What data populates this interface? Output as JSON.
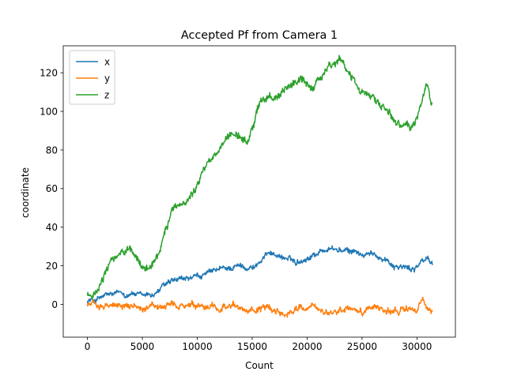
{
  "chart_data": {
    "type": "line",
    "title": "Accepted Pf from Camera 1",
    "xlabel": "Count",
    "ylabel": "coordinate",
    "xlim": [
      -2200,
      33500
    ],
    "ylim": [
      -17,
      134
    ],
    "xticks": [
      0,
      5000,
      10000,
      15000,
      20000,
      25000,
      30000
    ],
    "yticks": [
      0,
      20,
      40,
      60,
      80,
      100,
      120
    ],
    "legend": "top-left",
    "grid": false,
    "series": [
      {
        "name": "x",
        "color": "#1f77b4",
        "noise": 1.4,
        "points": [
          [
            0,
            2
          ],
          [
            700,
            2
          ],
          [
            1000,
            3
          ],
          [
            1500,
            4
          ],
          [
            2000,
            5
          ],
          [
            2500,
            5
          ],
          [
            3000,
            6
          ],
          [
            3500,
            5
          ],
          [
            4000,
            6
          ],
          [
            4500,
            5
          ],
          [
            5000,
            4
          ],
          [
            5500,
            5
          ],
          [
            6000,
            5
          ],
          [
            6500,
            7
          ],
          [
            7000,
            10
          ],
          [
            7500,
            11
          ],
          [
            8000,
            12
          ],
          [
            9000,
            13
          ],
          [
            10000,
            14
          ],
          [
            11000,
            16
          ],
          [
            12000,
            18
          ],
          [
            13000,
            19
          ],
          [
            14000,
            20
          ],
          [
            15000,
            19
          ],
          [
            16000,
            23
          ],
          [
            16500,
            28
          ],
          [
            17000,
            26
          ],
          [
            18000,
            24
          ],
          [
            19000,
            22
          ],
          [
            20000,
            24
          ],
          [
            21000,
            27
          ],
          [
            22000,
            29
          ],
          [
            23000,
            28
          ],
          [
            24000,
            27
          ],
          [
            24500,
            28
          ],
          [
            25000,
            25
          ],
          [
            26000,
            26
          ],
          [
            27000,
            24
          ],
          [
            28000,
            20
          ],
          [
            29000,
            19
          ],
          [
            29500,
            18
          ],
          [
            30000,
            20
          ],
          [
            30500,
            22
          ],
          [
            31000,
            24
          ],
          [
            31400,
            21
          ]
        ]
      },
      {
        "name": "y",
        "color": "#ff7f0e",
        "noise": 1.6,
        "points": [
          [
            0,
            0
          ],
          [
            1000,
            0
          ],
          [
            2000,
            0
          ],
          [
            3000,
            -1
          ],
          [
            4000,
            -1
          ],
          [
            5000,
            -1
          ],
          [
            6000,
            -1
          ],
          [
            7000,
            -2
          ],
          [
            8000,
            -1
          ],
          [
            9000,
            -1
          ],
          [
            10000,
            -2
          ],
          [
            11000,
            -2
          ],
          [
            12000,
            -1
          ],
          [
            13000,
            -1
          ],
          [
            14000,
            -2
          ],
          [
            15000,
            -3
          ],
          [
            16000,
            -2
          ],
          [
            17000,
            -3
          ],
          [
            18000,
            -5
          ],
          [
            19000,
            -2
          ],
          [
            20000,
            -2
          ],
          [
            20500,
            1
          ],
          [
            21000,
            -3
          ],
          [
            22000,
            -6
          ],
          [
            23000,
            -3
          ],
          [
            24000,
            -2
          ],
          [
            25000,
            -4
          ],
          [
            26000,
            -2
          ],
          [
            26500,
            0
          ],
          [
            27000,
            -3
          ],
          [
            28000,
            -4
          ],
          [
            29000,
            -3
          ],
          [
            29500,
            -2
          ],
          [
            30000,
            -3
          ],
          [
            30500,
            2
          ],
          [
            30800,
            -1
          ],
          [
            31000,
            -3
          ],
          [
            31400,
            -4
          ]
        ]
      },
      {
        "name": "z",
        "color": "#2ca02c",
        "noise": 2.0,
        "points": [
          [
            0,
            5
          ],
          [
            500,
            4
          ],
          [
            800,
            6
          ],
          [
            1200,
            10
          ],
          [
            1700,
            17
          ],
          [
            2200,
            22
          ],
          [
            2700,
            25
          ],
          [
            3200,
            26
          ],
          [
            3700,
            28
          ],
          [
            4200,
            26
          ],
          [
            4700,
            22
          ],
          [
            5200,
            18
          ],
          [
            5700,
            20
          ],
          [
            6200,
            24
          ],
          [
            6700,
            30
          ],
          [
            7000,
            38
          ],
          [
            7500,
            45
          ],
          [
            8000,
            50
          ],
          [
            8500,
            52
          ],
          [
            9000,
            55
          ],
          [
            9500,
            57
          ],
          [
            10000,
            62
          ],
          [
            10500,
            70
          ],
          [
            11000,
            74
          ],
          [
            11500,
            78
          ],
          [
            12000,
            80
          ],
          [
            12500,
            84
          ],
          [
            13000,
            87
          ],
          [
            13500,
            88
          ],
          [
            14000,
            86
          ],
          [
            14500,
            84
          ],
          [
            15000,
            90
          ],
          [
            15500,
            102
          ],
          [
            16000,
            108
          ],
          [
            16500,
            108
          ],
          [
            17000,
            106
          ],
          [
            17500,
            107
          ],
          [
            18000,
            111
          ],
          [
            18500,
            113
          ],
          [
            19000,
            115
          ],
          [
            19500,
            117
          ],
          [
            20000,
            114
          ],
          [
            20500,
            111
          ],
          [
            21000,
            117
          ],
          [
            21500,
            120
          ],
          [
            22000,
            123
          ],
          [
            22500,
            124
          ],
          [
            23000,
            126
          ],
          [
            23500,
            122
          ],
          [
            24000,
            118
          ],
          [
            24500,
            114
          ],
          [
            25000,
            111
          ],
          [
            25500,
            108
          ],
          [
            26000,
            107
          ],
          [
            26500,
            105
          ],
          [
            27000,
            102
          ],
          [
            27500,
            99
          ],
          [
            28000,
            96
          ],
          [
            28500,
            94
          ],
          [
            29000,
            93
          ],
          [
            29500,
            91
          ],
          [
            30000,
            95
          ],
          [
            30400,
            104
          ],
          [
            30800,
            114
          ],
          [
            31000,
            112
          ],
          [
            31200,
            106
          ],
          [
            31400,
            103
          ]
        ]
      }
    ]
  }
}
